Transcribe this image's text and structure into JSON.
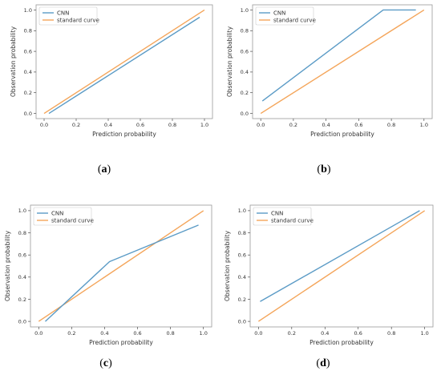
{
  "colors": {
    "cnn": "#5b9bc6",
    "standard": "#f4a55a",
    "frame": "#999999",
    "gridline": "#333333"
  },
  "chart_data": [
    {
      "type": "line",
      "panel": "a",
      "xlabel": "Prediction probability",
      "ylabel": "Observation probability",
      "xlim": [
        -0.05,
        1.05
      ],
      "ylim": [
        -0.05,
        1.05
      ],
      "xticks": [
        "0.0",
        "0.2",
        "0.4",
        "0.6",
        "0.8",
        "1.0"
      ],
      "yticks": [
        "0.0",
        "0.2",
        "0.4",
        "0.6",
        "0.8",
        "1.0"
      ],
      "legend": "top-left",
      "series": [
        {
          "name": "CNN",
          "x": [
            0.03,
            0.97
          ],
          "y": [
            0.0,
            0.93
          ]
        },
        {
          "name": "standard curve",
          "x": [
            0.0,
            1.0
          ],
          "y": [
            0.0,
            1.0
          ]
        }
      ]
    },
    {
      "type": "line",
      "panel": "b",
      "xlabel": "Prediction probability",
      "ylabel": "Observation probability",
      "xlim": [
        -0.05,
        1.05
      ],
      "ylim": [
        -0.05,
        1.05
      ],
      "xticks": [
        "0.0",
        "0.2",
        "0.4",
        "0.6",
        "0.8",
        "1.0"
      ],
      "yticks": [
        "0.0",
        "0.2",
        "0.4",
        "0.6",
        "0.8",
        "1.0"
      ],
      "legend": "top-left",
      "series": [
        {
          "name": "CNN",
          "x": [
            0.01,
            0.75,
            0.95
          ],
          "y": [
            0.12,
            1.0,
            1.0
          ]
        },
        {
          "name": "standard curve",
          "x": [
            0.0,
            1.0
          ],
          "y": [
            0.0,
            1.0
          ]
        }
      ]
    },
    {
      "type": "line",
      "panel": "c",
      "xlabel": "Prediction probability",
      "ylabel": "Observation probability",
      "xlim": [
        -0.05,
        1.05
      ],
      "ylim": [
        -0.05,
        1.05
      ],
      "xticks": [
        "0.0",
        "0.2",
        "0.4",
        "0.6",
        "0.8",
        "1.0"
      ],
      "yticks": [
        "0.0",
        "0.2",
        "0.4",
        "0.6",
        "0.8",
        "1.0"
      ],
      "legend": "top-left",
      "series": [
        {
          "name": "CNN",
          "x": [
            0.04,
            0.43,
            0.97
          ],
          "y": [
            0.0,
            0.54,
            0.87
          ]
        },
        {
          "name": "standard curve",
          "x": [
            0.0,
            1.0
          ],
          "y": [
            0.0,
            1.0
          ]
        }
      ]
    },
    {
      "type": "line",
      "panel": "d",
      "xlabel": "Prediction probability",
      "ylabel": "Observation probability",
      "xlim": [
        -0.05,
        1.05
      ],
      "ylim": [
        -0.05,
        1.05
      ],
      "xticks": [
        "0.0",
        "0.2",
        "0.4",
        "0.6",
        "0.8",
        "1.0"
      ],
      "yticks": [
        "0.0",
        "0.2",
        "0.4",
        "0.6",
        "0.8",
        "1.0"
      ],
      "legend": "top-left",
      "series": [
        {
          "name": "CNN",
          "x": [
            0.01,
            0.97
          ],
          "y": [
            0.18,
            1.0
          ]
        },
        {
          "name": "standard curve",
          "x": [
            0.0,
            1.0
          ],
          "y": [
            0.0,
            1.0
          ]
        }
      ]
    }
  ],
  "panel_labels": [
    {
      "open": "(",
      "letter": "a",
      "close": ")"
    },
    {
      "open": "(",
      "letter": "b",
      "close": ")"
    },
    {
      "open": "(",
      "letter": "c",
      "close": ")"
    },
    {
      "open": "(",
      "letter": "d",
      "close": ")"
    }
  ]
}
